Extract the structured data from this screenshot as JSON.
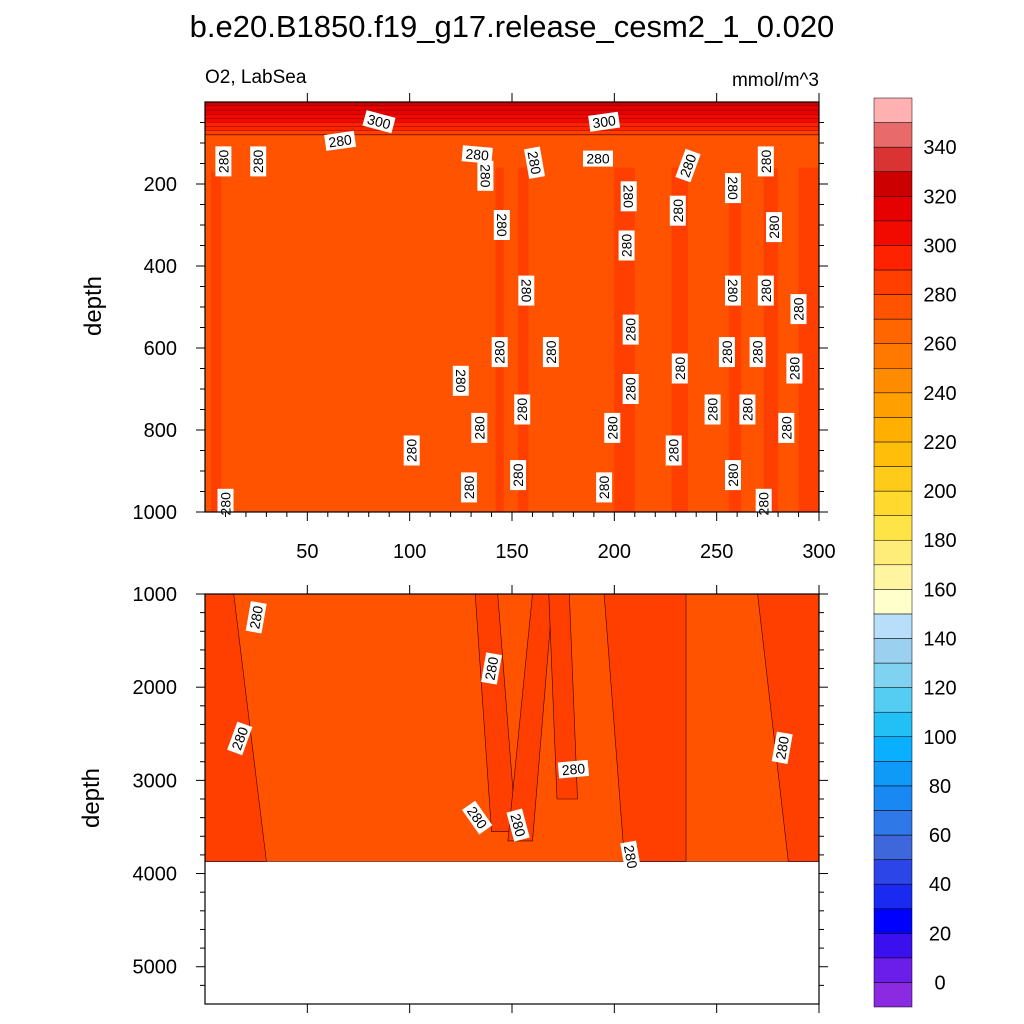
{
  "title": "b.e20.B1850.f19_g17.release_cesm2_1_0.020",
  "chart_data": [
    {
      "type": "heatmap",
      "panel": "upper",
      "left_label": "O2, LabSea",
      "right_label": "mmol/m^3",
      "xlabel": "",
      "ylabel": "depth",
      "xlim": [
        0,
        300
      ],
      "ylim": [
        1000,
        0
      ],
      "xticks": [
        50,
        100,
        150,
        200,
        250,
        300
      ],
      "yticks": [
        200,
        400,
        600,
        800,
        1000
      ],
      "grid": false,
      "background_value": 275,
      "surface_layer": {
        "from_depth": 0,
        "to_depth": 80,
        "value_top": 320,
        "value_bottom": 285
      },
      "high_columns": [
        {
          "x": 3,
          "x_end": 8,
          "depth_from": 170,
          "depth_to": 1000,
          "value": 285
        },
        {
          "x": 142,
          "x_end": 146,
          "depth_from": 160,
          "depth_to": 1000,
          "value": 285
        },
        {
          "x": 153,
          "x_end": 158,
          "depth_from": 160,
          "depth_to": 1000,
          "value": 285
        },
        {
          "x": 200,
          "x_end": 210,
          "depth_from": 160,
          "depth_to": 1000,
          "value": 285
        },
        {
          "x": 228,
          "x_end": 236,
          "depth_from": 160,
          "depth_to": 1000,
          "value": 285
        },
        {
          "x": 256,
          "x_end": 262,
          "depth_from": 200,
          "depth_to": 1000,
          "value": 285
        },
        {
          "x": 273,
          "x_end": 280,
          "depth_from": 160,
          "depth_to": 1000,
          "value": 285
        },
        {
          "x": 290,
          "x_end": 300,
          "depth_from": 160,
          "depth_to": 1000,
          "value": 285
        }
      ],
      "contour_labels": [
        {
          "x": 85,
          "y": 48,
          "text": "300",
          "angle": 15
        },
        {
          "x": 195,
          "y": 48,
          "text": "300",
          "angle": -8
        },
        {
          "x": 66,
          "y": 95,
          "text": "280",
          "angle": -8
        },
        {
          "x": 9,
          "y": 145,
          "text": "280",
          "angle": -90
        },
        {
          "x": 26,
          "y": 145,
          "text": "280",
          "angle": -90
        },
        {
          "x": 133,
          "y": 128,
          "text": "280",
          "angle": 5
        },
        {
          "x": 161,
          "y": 148,
          "text": "280",
          "angle": 80
        },
        {
          "x": 192,
          "y": 138,
          "text": "280",
          "angle": 0
        },
        {
          "x": 236,
          "y": 155,
          "text": "280",
          "angle": -70
        },
        {
          "x": 274,
          "y": 145,
          "text": "280",
          "angle": -90
        },
        {
          "x": 137,
          "y": 180,
          "text": "280",
          "angle": 90
        },
        {
          "x": 207,
          "y": 230,
          "text": "280",
          "angle": 90
        },
        {
          "x": 258,
          "y": 210,
          "text": "280",
          "angle": 90
        },
        {
          "x": 231,
          "y": 265,
          "text": "280",
          "angle": -90
        },
        {
          "x": 145,
          "y": 300,
          "text": "280",
          "angle": 90
        },
        {
          "x": 206,
          "y": 350,
          "text": "280",
          "angle": -90
        },
        {
          "x": 278,
          "y": 305,
          "text": "280",
          "angle": -90
        },
        {
          "x": 157,
          "y": 460,
          "text": "280",
          "angle": 90
        },
        {
          "x": 258,
          "y": 460,
          "text": "280",
          "angle": 90
        },
        {
          "x": 274,
          "y": 460,
          "text": "280",
          "angle": -90
        },
        {
          "x": 290,
          "y": 505,
          "text": "280",
          "angle": -90
        },
        {
          "x": 208,
          "y": 555,
          "text": "280",
          "angle": -90
        },
        {
          "x": 144,
          "y": 610,
          "text": "280",
          "angle": -90
        },
        {
          "x": 169,
          "y": 610,
          "text": "280",
          "angle": -90
        },
        {
          "x": 255,
          "y": 610,
          "text": "280",
          "angle": -90
        },
        {
          "x": 270,
          "y": 610,
          "text": "280",
          "angle": -90
        },
        {
          "x": 232,
          "y": 650,
          "text": "280",
          "angle": -90
        },
        {
          "x": 288,
          "y": 650,
          "text": "280",
          "angle": -90
        },
        {
          "x": 125,
          "y": 680,
          "text": "280",
          "angle": 90
        },
        {
          "x": 208,
          "y": 700,
          "text": "280",
          "angle": -90
        },
        {
          "x": 155,
          "y": 750,
          "text": "280",
          "angle": -90
        },
        {
          "x": 248,
          "y": 750,
          "text": "280",
          "angle": -90
        },
        {
          "x": 265,
          "y": 750,
          "text": "280",
          "angle": -90
        },
        {
          "x": 134,
          "y": 795,
          "text": "280",
          "angle": -90
        },
        {
          "x": 199,
          "y": 795,
          "text": "280",
          "angle": -90
        },
        {
          "x": 284,
          "y": 795,
          "text": "280",
          "angle": -90
        },
        {
          "x": 101,
          "y": 850,
          "text": "280",
          "angle": -90
        },
        {
          "x": 229,
          "y": 850,
          "text": "280",
          "angle": -90
        },
        {
          "x": 153,
          "y": 910,
          "text": "280",
          "angle": -90
        },
        {
          "x": 258,
          "y": 910,
          "text": "280",
          "angle": -90
        },
        {
          "x": 129,
          "y": 940,
          "text": "280",
          "angle": -90
        },
        {
          "x": 195,
          "y": 940,
          "text": "280",
          "angle": -90
        },
        {
          "x": 10,
          "y": 980,
          "text": "280",
          "angle": -90
        },
        {
          "x": 273,
          "y": 980,
          "text": "280",
          "angle": -90
        }
      ]
    },
    {
      "type": "heatmap",
      "panel": "lower",
      "xlabel": "",
      "ylabel": "depth",
      "xlim": [
        0,
        300
      ],
      "ylim": [
        5400,
        1000
      ],
      "yticks": [
        1000,
        2000,
        3000,
        4000,
        5000
      ],
      "grid": false,
      "seafloor_depth": 3870,
      "background_value": 275,
      "high_regions": [
        {
          "x_top": 0,
          "x_top_end": 14,
          "x_bottom": 0,
          "x_bottom_end": 30,
          "depth_to": 3870,
          "value": 285
        },
        {
          "x_top": 132,
          "x_top_end": 143,
          "x_bottom": 140,
          "x_bottom_end": 152,
          "depth_to": 3550,
          "value": 285
        },
        {
          "x_top": 160,
          "x_top_end": 170,
          "x_bottom": 148,
          "x_bottom_end": 160,
          "depth_to": 3650,
          "value": 285
        },
        {
          "x_top": 168,
          "x_top_end": 178,
          "x_bottom": 172,
          "x_bottom_end": 182,
          "depth_to": 3200,
          "value": 285
        },
        {
          "x_top": 195,
          "x_top_end": 235,
          "x_bottom": 205,
          "x_bottom_end": 235,
          "depth_to": 3870,
          "value": 285
        },
        {
          "x_top": 270,
          "x_top_end": 300,
          "x_bottom": 285,
          "x_bottom_end": 300,
          "depth_to": 3870,
          "value": 285
        }
      ],
      "contour_labels": [
        {
          "x": 25,
          "y": 1250,
          "text": "280",
          "angle": -80
        },
        {
          "x": 140,
          "y": 1800,
          "text": "280",
          "angle": -80
        },
        {
          "x": 17,
          "y": 2550,
          "text": "280",
          "angle": -70
        },
        {
          "x": 282,
          "y": 2650,
          "text": "280",
          "angle": -80
        },
        {
          "x": 180,
          "y": 2880,
          "text": "280",
          "angle": -5
        },
        {
          "x": 133,
          "y": 3400,
          "text": "280",
          "angle": 55
        },
        {
          "x": 153,
          "y": 3480,
          "text": "280",
          "angle": 75
        },
        {
          "x": 208,
          "y": 3820,
          "text": "280",
          "angle": 80
        }
      ]
    }
  ],
  "colorbar": {
    "tick_labels": [
      "0",
      "20",
      "40",
      "60",
      "80",
      "100",
      "120",
      "140",
      "160",
      "180",
      "200",
      "220",
      "240",
      "260",
      "280",
      "300",
      "320",
      "340"
    ],
    "colors": [
      "#8a2be2",
      "#6a1ee8",
      "#3a10ee",
      "#0000ff",
      "#1a2af0",
      "#2b45e6",
      "#3f67dc",
      "#2f78e8",
      "#1a88f2",
      "#0f9af8",
      "#0aafff",
      "#22c0f5",
      "#55cdf2",
      "#7fd3f0",
      "#9bd0ef",
      "#b8defa",
      "#ffffcc",
      "#fff5a0",
      "#ffed7a",
      "#ffe447",
      "#ffd92e",
      "#ffcb1a",
      "#ffbe0a",
      "#ffaf00",
      "#ff9f00",
      "#ff8c00",
      "#ff7800",
      "#ff6600",
      "#ff5300",
      "#ff3f00",
      "#ff2200",
      "#f20a00",
      "#e60000",
      "#cc0000",
      "#d93333",
      "#e86a6a",
      "#ffb0b0"
    ]
  }
}
